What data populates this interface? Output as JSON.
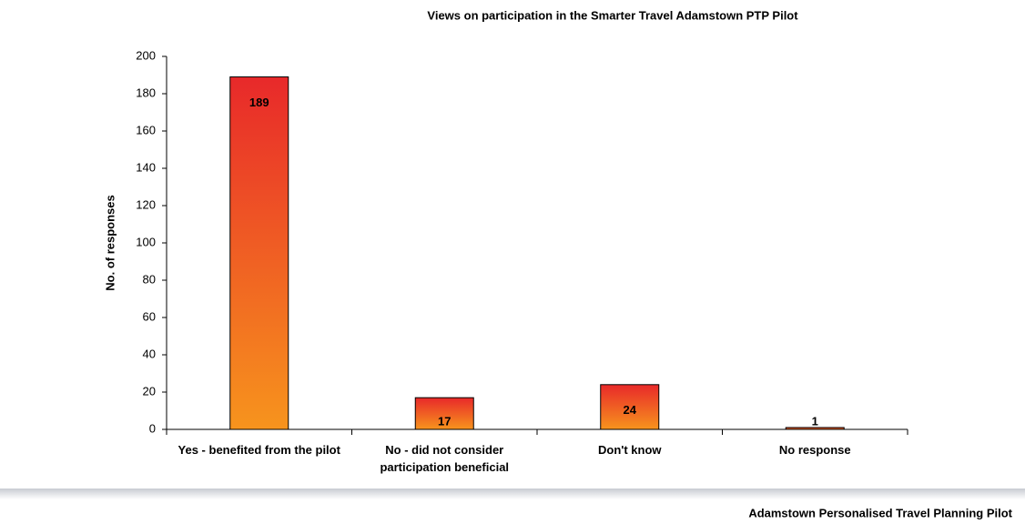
{
  "chart_data": {
    "type": "bar",
    "title": "Views on participation in the Smarter Travel Adamstown PTP Pilot",
    "y_label": "No. of responses",
    "categories": [
      "Yes - benefited from the pilot",
      "No - did not consider participation beneficial",
      "Don't know",
      "No response"
    ],
    "values": [
      189,
      17,
      24,
      1
    ],
    "gradient": [
      "#e8292a",
      "#f7941d"
    ],
    "ylim": [
      0,
      200
    ],
    "yticks": [
      0,
      20,
      40,
      60,
      80,
      100,
      120,
      140,
      160,
      180,
      200
    ],
    "grid": false
  },
  "footer": "Adamstown Personalised Travel Planning Pilot"
}
